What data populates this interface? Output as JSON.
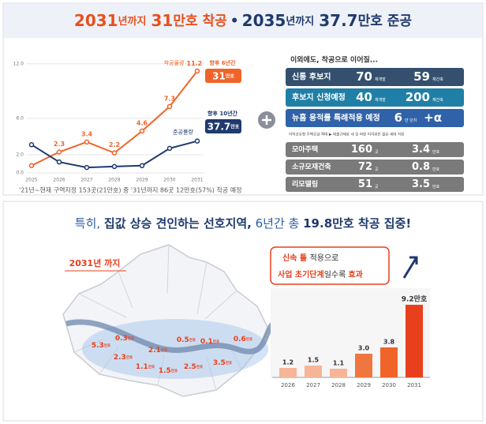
{
  "header": {
    "title": [
      "2031",
      "년까지",
      "31",
      "만호 착공",
      "•",
      "2035",
      "년까지",
      "37.7",
      "만호 준공"
    ]
  },
  "chart_data": [
    {
      "type": "line",
      "categories": [
        "2025",
        "2026",
        "2027",
        "2028",
        "2029",
        "2030",
        "2031"
      ],
      "series": [
        {
          "name": "착공물량",
          "color": "#f0642a",
          "values": [
            0.8,
            2.3,
            3.4,
            2.2,
            4.6,
            7.3,
            11.2
          ],
          "value_labels": [
            null,
            "2.3",
            "3.4",
            "2.2",
            "4.6",
            "7.3",
            "11.2"
          ]
        },
        {
          "name": "준공물량",
          "color": "#1f3a6e",
          "values": [
            3.1,
            1.2,
            0.6,
            0.7,
            0.8,
            2.7,
            3.5
          ]
        }
      ],
      "ylim": [
        0,
        12.5
      ],
      "yticks": [
        {
          "value": 0,
          "label": "0.0"
        },
        {
          "value": 2,
          "label": "2.0"
        },
        {
          "value": 6,
          "label": "6.0"
        },
        {
          "value": 12,
          "label": "12.0"
        }
      ],
      "grid": true,
      "annotations": {
        "period_1": "향후 6년간",
        "total_1": "31",
        "period_2": "향후 10년간",
        "total_2": "37.7",
        "unit": "만호"
      },
      "footnote": "'21년~현재 구역지정 153곳(21만호) 중 '31년까지 86곳 12만호(57%) 착공 예정"
    },
    {
      "type": "bar",
      "categories": [
        "2026",
        "2027",
        "2028",
        "2029",
        "2030",
        "2031"
      ],
      "values": [
        1.2,
        1.5,
        1.1,
        3.0,
        3.8,
        9.2
      ],
      "value_labels": [
        "1.2",
        "1.5",
        "1.1",
        "3.0",
        "3.8",
        "9.2만호"
      ],
      "colors": [
        "#f6b596",
        "#f6b596",
        "#f6b596",
        "#f0763f",
        "#f0642a",
        "#e8401c"
      ]
    }
  ],
  "table": {
    "heading": "이외에도, 착공으로 이어질...",
    "rows": [
      {
        "label": "신통 후보지",
        "color": "#34506e",
        "a": 70,
        "a_unit": "재개발",
        "b": 59,
        "b_unit": "재건축"
      },
      {
        "label": "후보지 신청예정",
        "color": "#1f7fa6",
        "a": 40,
        "a_unit": "재개발",
        "b": 200,
        "b_unit": "재건축"
      },
      {
        "label": "뉴홈 용적률 특례적용 예정",
        "color": "#2f62a8",
        "a": 6,
        "a_unit": "만 단지",
        "b": "+α"
      }
    ],
    "note": "이익공유형 주택공급 확대 ▶ 대출규제로 내 집 마련 어려워진 젊은 세대 지원",
    "rows2": [
      {
        "label": "모아주택",
        "color": "#7a7a7a",
        "a": 160,
        "a_unit": "곳",
        "b": 3.4,
        "b_unit": "만호"
      },
      {
        "label": "소규모재건축",
        "color": "#7a7a7a",
        "a": 72,
        "a_unit": "곳",
        "b": 0.8,
        "b_unit": "만호"
      },
      {
        "label": "리모델링",
        "color": "#7a7a7a",
        "a": 51,
        "a_unit": "곳",
        "b": 3.5,
        "b_unit": "만호"
      }
    ]
  },
  "bottom": {
    "title": [
      "특히, ",
      "집값 상승 견인하는 선호지역,",
      " 6년간 총 ",
      "19.8만호 착공 집중!"
    ],
    "map_label": "2031년 까지",
    "map_values": [
      0.3,
      5.3,
      2.3,
      2.1,
      1.1,
      1.5,
      0.5,
      0.1,
      2.5,
      3.5,
      0.6
    ],
    "map_unit": "만호",
    "callout": [
      [
        "신속 틀 ",
        "적용으로"
      ],
      [
        "사업 초기단계",
        "일수록 ",
        "효과"
      ]
    ]
  }
}
